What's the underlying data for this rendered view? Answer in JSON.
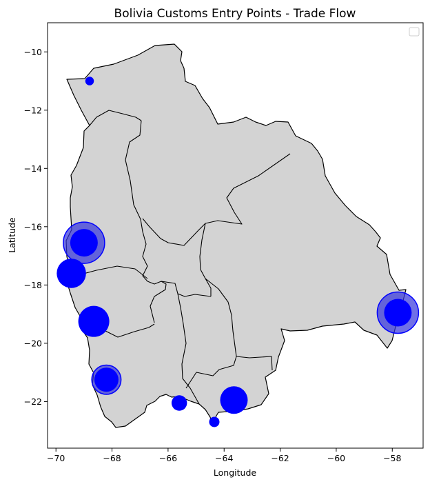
{
  "chart_data": {
    "type": "scatter",
    "title": "Bolivia Customs Entry Points - Trade Flow",
    "xlabel": "Longitude",
    "ylabel": "Latitude",
    "xlim": [
      -70.3,
      -56.9
    ],
    "ylim": [
      -23.6,
      -9.0
    ],
    "xticks": [
      -70,
      -68,
      -66,
      -64,
      -62,
      -60,
      -58
    ],
    "yticks": [
      -10,
      -12,
      -14,
      -16,
      -18,
      -20,
      -22
    ],
    "xtick_labels": [
      "−70",
      "−68",
      "−66",
      "−64",
      "−62",
      "−60",
      "−58"
    ],
    "ytick_labels": [
      "−10",
      "−12",
      "−14",
      "−16",
      "−18",
      "−20",
      "−22"
    ],
    "legend": "top-right",
    "grid": false,
    "colors": {
      "land": "#d3d3d3",
      "border": "#000000",
      "points": "#0000ff",
      "halo": "#3333dd"
    },
    "points": [
      {
        "lon": -68.8,
        "lat": -11.0,
        "size": 0.5
      },
      {
        "lon": -69.0,
        "lat": -16.55,
        "size": 1.6,
        "halo": 2.4
      },
      {
        "lon": -69.45,
        "lat": -17.6,
        "size": 1.7
      },
      {
        "lon": -68.65,
        "lat": -19.25,
        "size": 1.8
      },
      {
        "lon": -68.2,
        "lat": -21.25,
        "size": 1.4,
        "halo": 1.7
      },
      {
        "lon": -65.6,
        "lat": -22.05,
        "size": 0.9
      },
      {
        "lon": -63.65,
        "lat": -21.95,
        "size": 1.6
      },
      {
        "lon": -64.35,
        "lat": -22.7,
        "size": 0.6
      },
      {
        "lon": -57.8,
        "lat": -18.95,
        "size": 1.6,
        "halo": 2.4
      }
    ]
  }
}
